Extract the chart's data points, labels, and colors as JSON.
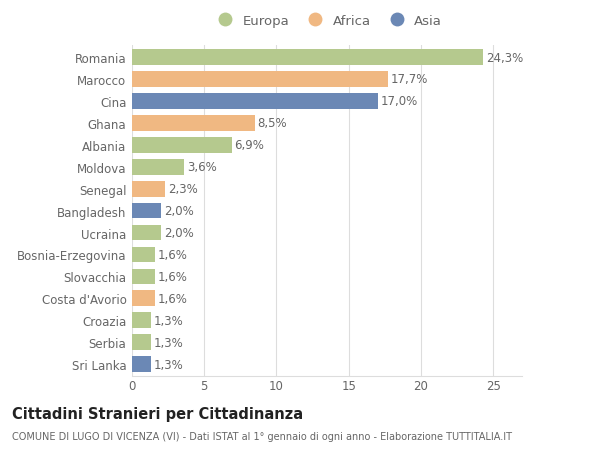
{
  "countries": [
    "Romania",
    "Marocco",
    "Cina",
    "Ghana",
    "Albania",
    "Moldova",
    "Senegal",
    "Bangladesh",
    "Ucraina",
    "Bosnia-Erzegovina",
    "Slovacchia",
    "Costa d'Avorio",
    "Croazia",
    "Serbia",
    "Sri Lanka"
  ],
  "values": [
    24.3,
    17.7,
    17.0,
    8.5,
    6.9,
    3.6,
    2.3,
    2.0,
    2.0,
    1.6,
    1.6,
    1.6,
    1.3,
    1.3,
    1.3
  ],
  "labels": [
    "24,3%",
    "17,7%",
    "17,0%",
    "8,5%",
    "6,9%",
    "3,6%",
    "2,3%",
    "2,0%",
    "2,0%",
    "1,6%",
    "1,6%",
    "1,6%",
    "1,3%",
    "1,3%",
    "1,3%"
  ],
  "continents": [
    "Europa",
    "Africa",
    "Asia",
    "Africa",
    "Europa",
    "Europa",
    "Africa",
    "Asia",
    "Europa",
    "Europa",
    "Europa",
    "Africa",
    "Europa",
    "Europa",
    "Asia"
  ],
  "colors": {
    "Europa": "#b5c98e",
    "Africa": "#f0b882",
    "Asia": "#6b88b5"
  },
  "title": "Cittadini Stranieri per Cittadinanza",
  "subtitle": "COMUNE DI LUGO DI VICENZA (VI) - Dati ISTAT al 1° gennaio di ogni anno - Elaborazione TUTTITALIA.IT",
  "xlim": [
    0,
    27
  ],
  "xticks": [
    0,
    5,
    10,
    15,
    20,
    25
  ],
  "background_color": "#ffffff",
  "grid_color": "#dddddd",
  "label_fontsize": 8.5,
  "tick_fontsize": 8.5,
  "title_fontsize": 10.5,
  "subtitle_fontsize": 7.0,
  "bar_height": 0.72
}
